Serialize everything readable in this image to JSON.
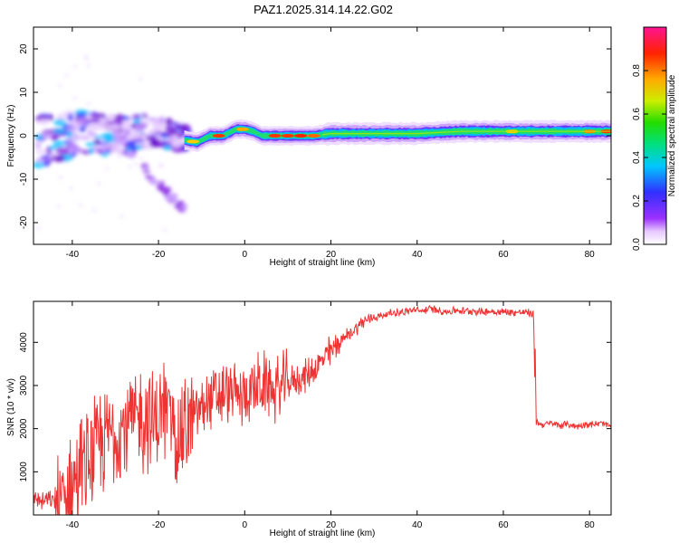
{
  "title": "PAZ1.2025.314.14.22.G02",
  "colorbar": {
    "label": "Normalized spectral amplitude",
    "ticks": [
      "0.0",
      "0.2",
      "0.4",
      "0.6",
      "0.8"
    ],
    "tick_values": [
      0.0,
      0.2,
      0.4,
      0.6,
      0.8
    ],
    "range": [
      0,
      1
    ]
  },
  "chart_data": [
    {
      "type": "heatmap",
      "title": "",
      "xlabel": "Height of straight line (km)",
      "ylabel": "Frequency (Hz)",
      "xlim": [
        -49,
        85
      ],
      "ylim": [
        -25,
        25
      ],
      "xticks": [
        -40,
        -20,
        0,
        20,
        40,
        60,
        80
      ],
      "yticks": [
        -20,
        -10,
        0,
        10,
        20
      ],
      "ridge": {
        "description_points": [
          [
            -48,
            -2
          ],
          [
            -44,
            0
          ],
          [
            -40,
            0
          ],
          [
            -36,
            1
          ],
          [
            -32,
            0
          ],
          [
            -28,
            0
          ],
          [
            -24,
            1
          ],
          [
            -20,
            1
          ],
          [
            -16,
            0
          ],
          [
            -14,
            -1
          ],
          [
            -11,
            -1.5
          ],
          [
            -8,
            0
          ],
          [
            -5,
            0
          ],
          [
            -2,
            1.5
          ],
          [
            0,
            1.5
          ],
          [
            2,
            1
          ],
          [
            4,
            0
          ],
          [
            10,
            0
          ],
          [
            16,
            0
          ],
          [
            20,
            0.5
          ],
          [
            30,
            0.5
          ],
          [
            40,
            0.5
          ],
          [
            50,
            1
          ],
          [
            60,
            1
          ],
          [
            70,
            1
          ],
          [
            80,
            1
          ],
          [
            85,
            1
          ]
        ]
      },
      "scattered_region": {
        "x": [
          -48,
          -13
        ],
        "y": [
          -17,
          7
        ]
      }
    },
    {
      "type": "line",
      "title": "",
      "xlabel": "Height of straight line (km)",
      "ylabel": "SNR (10 * v/v)",
      "xlim": [
        -49,
        85
      ],
      "ylim": [
        0,
        4950
      ],
      "xticks": [
        -40,
        -20,
        0,
        20,
        40,
        60,
        80
      ],
      "yticks": [
        1000,
        2000,
        3000,
        4000
      ],
      "color": "#ee3333",
      "series": [
        {
          "x": [
            -49,
            -47,
            -45,
            -43,
            -41,
            -39,
            -37,
            -35,
            -33,
            -31,
            -29,
            -27,
            -25,
            -23,
            -21,
            -19,
            -17,
            -15,
            -13,
            -11,
            -9,
            -7,
            -5,
            -3,
            -1,
            1,
            3,
            5,
            7,
            9,
            11,
            13,
            15,
            17,
            19,
            21,
            23,
            25,
            27,
            29,
            31,
            33,
            35,
            37,
            39,
            41,
            43,
            45,
            47,
            49,
            51,
            53,
            55,
            57,
            59,
            61,
            63,
            65,
            67,
            67.5,
            69,
            71,
            73,
            75,
            77,
            79,
            81,
            83,
            85
          ],
          "y": [
            450,
            300,
            350,
            250,
            500,
            900,
            1100,
            1400,
            1700,
            1900,
            2000,
            2200,
            2150,
            2300,
            2100,
            2400,
            2300,
            1800,
            2100,
            2400,
            2600,
            2700,
            2750,
            2850,
            2700,
            2900,
            2950,
            3000,
            2900,
            3000,
            3100,
            3150,
            3300,
            3450,
            3700,
            3900,
            4100,
            4250,
            4450,
            4550,
            4600,
            4650,
            4700,
            4700,
            4750,
            4720,
            4780,
            4750,
            4700,
            4750,
            4720,
            4740,
            4700,
            4720,
            4700,
            4710,
            4690,
            4700,
            4650,
            2150,
            2100,
            2120,
            2080,
            2100,
            2050,
            2110,
            2100,
            2120,
            2050
          ]
        }
      ]
    }
  ]
}
